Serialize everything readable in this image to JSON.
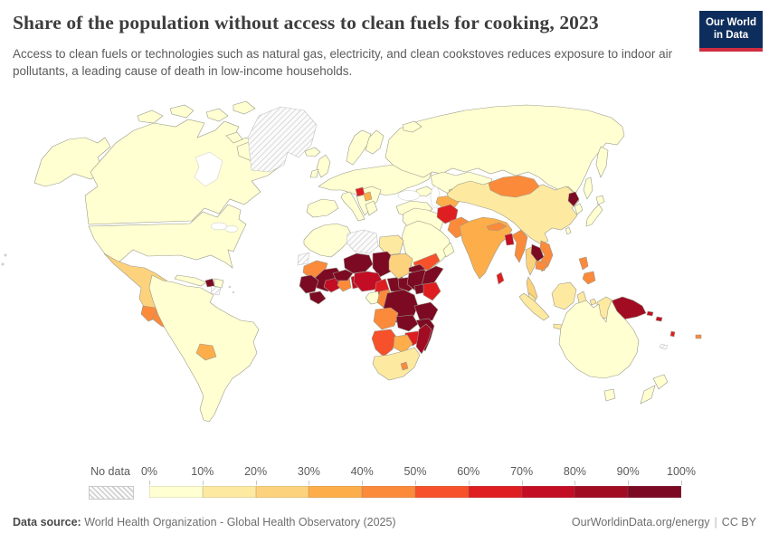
{
  "header": {
    "title": "Share of the population without access to clean fuels for cooking, 2023",
    "subtitle": "Access to clean fuels or technologies such as natural gas, electricity, and clean cookstoves reduces exposure to indoor air pollutants, a leading cause of death in low-income households.",
    "logo": {
      "line1": "Our World",
      "line2": "in Data",
      "bg_color": "#0d2e5c",
      "accent_color": "#cf2e41"
    }
  },
  "legend": {
    "no_data_label": "No data",
    "tick_labels": [
      "0%",
      "10%",
      "20%",
      "30%",
      "40%",
      "50%",
      "60%",
      "70%",
      "80%",
      "90%",
      "100%"
    ],
    "colors": [
      "#FFFFD2",
      "#FEE9A1",
      "#FDD27C",
      "#FDAE4A",
      "#FB8A3B",
      "#F6512A",
      "#DE1E21",
      "#C20D24",
      "#A10C23",
      "#7C0A23"
    ]
  },
  "footer": {
    "source_label": "Data source:",
    "source_text": "World Health Organization - Global Health Observatory (2025)",
    "link_text": "OurWorldinData.org/energy",
    "separator": "|",
    "license_text": "CC BY"
  },
  "chart_data": {
    "type": "choropleth",
    "title": "Share of the population without access to clean fuels for cooking, 2023",
    "year": 2023,
    "unit": "%",
    "bin_ranges": [
      "0-10",
      "10-20",
      "20-30",
      "30-40",
      "40-50",
      "50-60",
      "60-70",
      "70-80",
      "80-90",
      "90-100"
    ],
    "no_data_key": "nd",
    "regions": {
      "alaska": 0,
      "canada": 0,
      "usa": 0,
      "greenland": "nd",
      "mexico": 2,
      "guatemala": 4,
      "honduras-nicaragua": 4,
      "costa-rica-panama": 0,
      "cuba": 0,
      "haiti": 9,
      "dominican-republic": 0,
      "south-america": 0,
      "french-guiana": "nd",
      "paraguay": 3,
      "iceland": 0,
      "united-kingdom": 0,
      "ireland": 0,
      "scandinavia": 0,
      "finland": 0,
      "europe-mainland": 0,
      "spain": 0,
      "italy": 0,
      "balkans": 0,
      "bosnia": 6,
      "albania-north-macedonia": 3,
      "greece": 0,
      "turkey": 0,
      "caucasus": 0,
      "russia": 0,
      "kazakhstan": 0,
      "uzbekistan": 2,
      "turkmenistan": 3,
      "kyrgyz-tajik": 3,
      "iran-iraq": 0,
      "afghanistan": 6,
      "pakistan": 4,
      "middle-east": 0,
      "yemen": 5,
      "oman": 0,
      "india": 3,
      "nepal": 4,
      "bangladesh": 7,
      "sri-lanka": 6,
      "myanmar": 4,
      "thailand": 2,
      "laos": 9,
      "vietnam": 4,
      "cambodia": 4,
      "malaysia": 1,
      "sumatra": 1,
      "java": 1,
      "kalimantan": 1,
      "sulawesi": 1,
      "moluccas": 1,
      "philippines": 4,
      "indonesia-papua": 1,
      "papua-new-guinea": 8,
      "timor": 8,
      "solomon-islands": 7,
      "vanuatu": 6,
      "fiji": 4,
      "new-caledonia": "nd",
      "china": 1,
      "mongolia": 4,
      "north-korea": 9,
      "south-korea": 0,
      "japan": 0,
      "taiwan": 0,
      "north-africa": 0,
      "western-sahara": "nd",
      "libya": "nd",
      "egypt": 1,
      "mauritania": 4,
      "mali": 9,
      "senegal-guinea": 9,
      "sierra-leone-liberia": 9,
      "cote-divoire": 7,
      "ghana": 4,
      "togo-benin": 7,
      "burkina-faso": 9,
      "niger": 9,
      "chad": 9,
      "nigeria": 7,
      "cameroon": 6,
      "central-african-republic": 9,
      "sudan": 2,
      "south-sudan": 9,
      "eritrea": 9,
      "ethiopia": 9,
      "somalia": 9,
      "uganda": 9,
      "kenya": 6,
      "gabon": 0,
      "congo": 4,
      "drc": 9,
      "tanzania": 9,
      "angola": 4,
      "zambia": 9,
      "mozambique": 9,
      "zimbabwe": 6,
      "namibia": 5,
      "botswana": 3,
      "south-africa": 1,
      "lesotho": 4,
      "madagascar": 8,
      "australia": 0,
      "tasmania": 0,
      "new-zealand": 0
    }
  }
}
